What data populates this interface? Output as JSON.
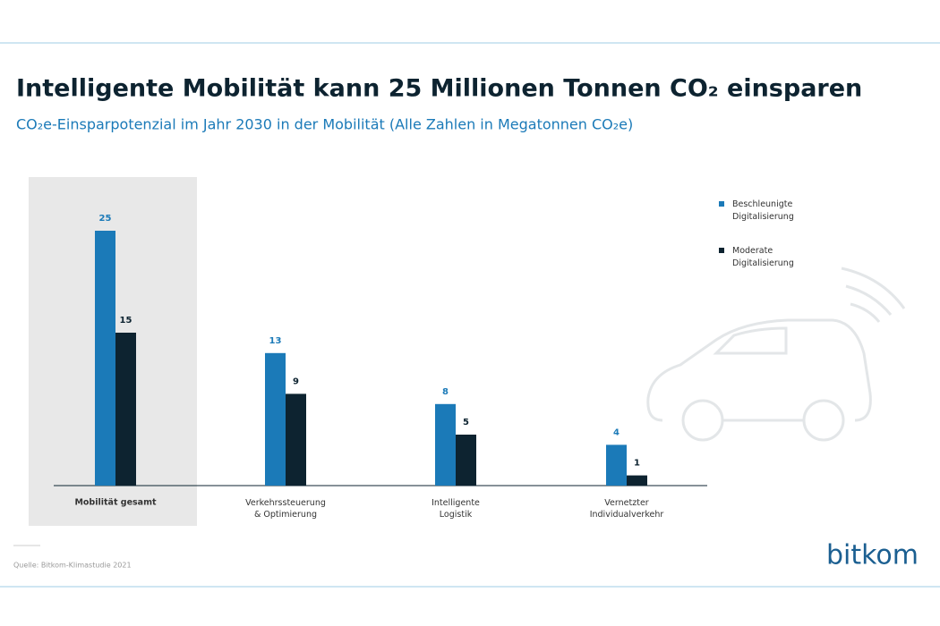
{
  "chart_data": {
    "type": "bar",
    "title": "Intelligente Mobilität kann 25 Millionen Tonnen CO₂ einsparen",
    "subtitle": "CO₂e-Einsparpotenzial im Jahr 2030 in der Mobilität (Alle Zahlen in Megatonnen CO₂e)",
    "categories": [
      "Mobilität gesamt",
      "Verkehrssteuerung\n& Optimierung",
      "Intelligente\nLogistik",
      "Vernetzter\nIndividualverkehr"
    ],
    "series": [
      {
        "name": "Beschleunigte\nDigitalisierung",
        "color": "#1b7ab8",
        "values": [
          25,
          13,
          8,
          4
        ]
      },
      {
        "name": "Moderate\nDigitalisierung",
        "color": "#0d2330",
        "values": [
          15,
          9,
          5,
          1
        ]
      }
    ],
    "ylim": [
      0,
      25
    ],
    "highlight": 0,
    "legend": "upper right",
    "source": "Quelle: Bitkom-Klimastudie 2021",
    "logo": "bitkom"
  }
}
